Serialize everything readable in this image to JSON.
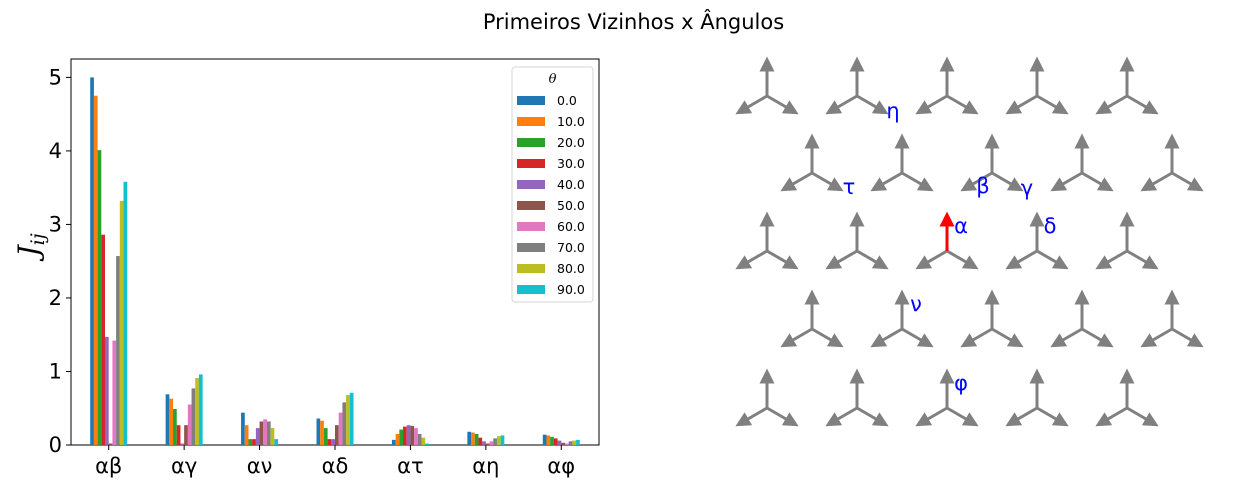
{
  "figure": {
    "suptitle": "Primeiros Vizinhos x Ângulos"
  },
  "chart_data": [
    {
      "type": "bar",
      "title": "",
      "xlabel": "",
      "ylabel": "J",
      "ylabel_subscript": "ij",
      "categories": [
        "αβ",
        "αγ",
        "αν",
        "αδ",
        "ατ",
        "αη",
        "αφ"
      ],
      "ylim": [
        0,
        5.25
      ],
      "yticks": [
        0,
        1,
        2,
        3,
        4,
        5
      ],
      "grid": false,
      "legend": {
        "title": "θ",
        "placement": "top-right"
      },
      "series": [
        {
          "name": "0.0",
          "color": "#1f77b4",
          "values": [
            5.0,
            0.69,
            0.44,
            0.36,
            0.07,
            0.18,
            0.14
          ]
        },
        {
          "name": "10.0",
          "color": "#ff7f0e",
          "values": [
            4.75,
            0.63,
            0.27,
            0.33,
            0.15,
            0.17,
            0.13
          ]
        },
        {
          "name": "20.0",
          "color": "#2ca02c",
          "values": [
            4.01,
            0.49,
            0.08,
            0.23,
            0.21,
            0.15,
            0.11
          ]
        },
        {
          "name": "30.0",
          "color": "#d62728",
          "values": [
            2.86,
            0.27,
            0.08,
            0.08,
            0.25,
            0.1,
            0.09
          ]
        },
        {
          "name": "40.0",
          "color": "#9467bd",
          "values": [
            1.47,
            0.02,
            0.23,
            0.08,
            0.27,
            0.05,
            0.06
          ]
        },
        {
          "name": "50.0",
          "color": "#8c564b",
          "values": [
            0.02,
            0.27,
            0.32,
            0.27,
            0.26,
            0.02,
            0.03
          ]
        },
        {
          "name": "60.0",
          "color": "#e377c2",
          "values": [
            1.42,
            0.55,
            0.35,
            0.44,
            0.23,
            0.05,
            0.02
          ]
        },
        {
          "name": "70.0",
          "color": "#7f7f7f",
          "values": [
            2.57,
            0.77,
            0.32,
            0.58,
            0.15,
            0.09,
            0.05
          ]
        },
        {
          "name": "80.0",
          "color": "#bcbd22",
          "values": [
            3.32,
            0.91,
            0.23,
            0.68,
            0.1,
            0.12,
            0.06
          ]
        },
        {
          "name": "90.0",
          "color": "#17becf",
          "values": [
            3.58,
            0.96,
            0.08,
            0.71,
            0.02,
            0.13,
            0.07
          ]
        }
      ]
    }
  ],
  "lattice": {
    "arrow_color": "#808080",
    "highlight_color": "#ff0000",
    "label_color": "#0000ff",
    "labels": [
      "η",
      "τ",
      "β",
      "γ",
      "α",
      "δ",
      "ν",
      "φ"
    ]
  }
}
